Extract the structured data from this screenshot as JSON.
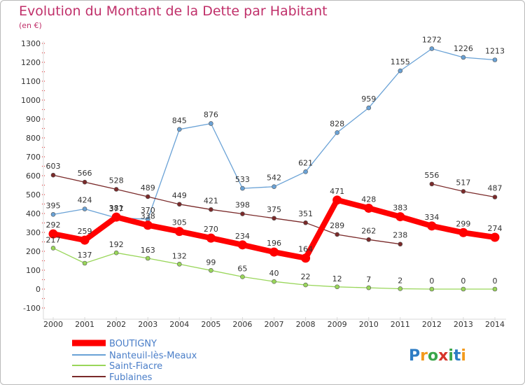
{
  "chart_data": {
    "type": "line",
    "title": "Evolution du Montant de la Dette par Habitant",
    "subtitle": "(en €)",
    "x": [
      "2000",
      "2001",
      "2002",
      "2003",
      "2004",
      "2005",
      "2006",
      "2007",
      "2008",
      "2009",
      "2010",
      "2011",
      "2012",
      "2013",
      "2014"
    ],
    "ylim": [
      -100,
      1300
    ],
    "yticks": [
      -100,
      0,
      100,
      200,
      300,
      400,
      500,
      600,
      700,
      800,
      900,
      1000,
      1100,
      1200,
      1300
    ],
    "grid": false,
    "legend_position": "bottom-left",
    "series": [
      {
        "name": "BOUTIGNY",
        "color": "#ff0000",
        "emphasis": true,
        "values": [
          292,
          259,
          381,
          338,
          305,
          270,
          234,
          196,
          164,
          471,
          428,
          383,
          334,
          299,
          274
        ]
      },
      {
        "name": "Nanteuil-lès-Meaux",
        "color": "#6aa2d6",
        "values": [
          395,
          424,
          377,
          370,
          845,
          876,
          533,
          542,
          621,
          828,
          959,
          1155,
          1272,
          1226,
          1213
        ]
      },
      {
        "name": "Saint-Fiacre",
        "color": "#99d65a",
        "values": [
          217,
          137,
          192,
          163,
          132,
          99,
          65,
          40,
          22,
          12,
          7,
          2,
          0,
          0,
          0
        ]
      },
      {
        "name": "Fublaines",
        "color": "#7a2a2a",
        "values": [
          603,
          566,
          528,
          489,
          449,
          421,
          398,
          375,
          351,
          289,
          262,
          238,
          556,
          517,
          487
        ]
      }
    ]
  },
  "brand": {
    "text": "Proxiti",
    "colors": [
      "#2d7cc4",
      "#f39a1d",
      "#3aa64b",
      "#d6342a",
      "#3aa64b",
      "#2d7cc4",
      "#f39a1d"
    ]
  }
}
